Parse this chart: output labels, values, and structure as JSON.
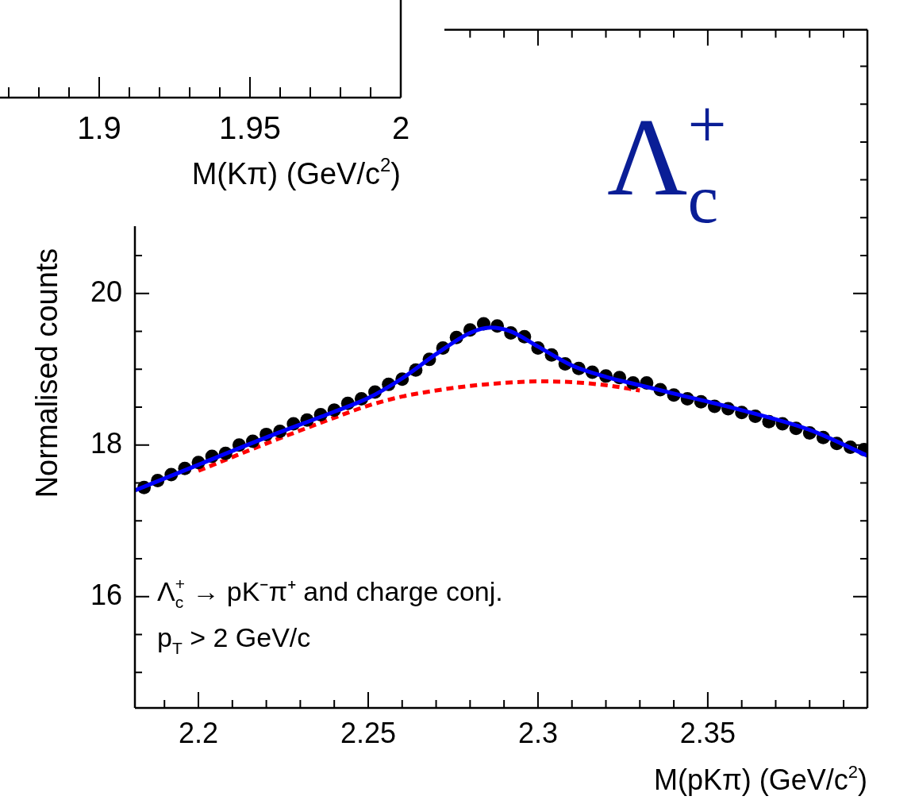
{
  "chart_data": [
    {
      "type": "other",
      "xlabel": "M(Kπ) (GeV/c$^{2}$)",
      "annotations": [
        "1.9",
        "1.95",
        "2"
      ]
    },
    {
      "type": "scatter",
      "title": "Λ$_{c}$$^{+}$",
      "xlabel": "M(pKπ) (GeV/c$^{2}$)",
      "ylabel": "Normalised counts",
      "annotations": [
        "Λ$_{c}$$^{+}$ → pK⁻π⁺ and charge conj.",
        "p$_{T}$ > 2 GeV/c"
      ],
      "xlim": [
        2.1813,
        2.397
      ],
      "xticks": [
        2.2,
        2.25,
        2.3,
        2.35
      ],
      "ylim": [
        14.53,
        23.48
      ],
      "yticks": [
        16,
        18,
        20
      ],
      "series": [
        {
          "type": "line",
          "color": "#0000ff",
          "marker": "none",
          "x": [
            2.1813,
            2.2,
            2.22,
            2.24,
            2.25,
            2.26,
            2.27,
            2.28,
            2.286,
            2.292,
            2.3,
            2.31,
            2.32,
            2.33,
            2.34,
            2.36,
            2.38,
            2.397
          ],
          "values": [
            17.4,
            17.74,
            18.1,
            18.44,
            18.62,
            18.88,
            19.2,
            19.48,
            19.55,
            19.5,
            19.3,
            19.05,
            18.9,
            18.79,
            18.68,
            18.46,
            18.2,
            17.86
          ]
        },
        {
          "color": "#000000",
          "marker": "circle",
          "x": [
            2.184,
            2.188,
            2.192,
            2.196,
            2.2,
            2.204,
            2.208,
            2.212,
            2.216,
            2.22,
            2.224,
            2.228,
            2.232,
            2.236,
            2.24,
            2.244,
            2.248,
            2.252,
            2.256,
            2.26,
            2.264,
            2.268,
            2.272,
            2.276,
            2.28,
            2.284,
            2.288,
            2.292,
            2.296,
            2.3,
            2.304,
            2.308,
            2.312,
            2.316,
            2.32,
            2.324,
            2.328,
            2.332,
            2.336,
            2.34,
            2.344,
            2.348,
            2.352,
            2.356,
            2.36,
            2.364,
            2.368,
            2.372,
            2.376,
            2.38,
            2.384,
            2.388,
            2.392,
            2.396
          ],
          "values": [
            17.44,
            17.53,
            17.61,
            17.69,
            17.77,
            17.85,
            17.89,
            18.0,
            18.05,
            18.14,
            18.18,
            18.28,
            18.33,
            18.4,
            18.46,
            18.55,
            18.61,
            18.7,
            18.8,
            18.87,
            18.99,
            19.13,
            19.28,
            19.42,
            19.52,
            19.6,
            19.57,
            19.48,
            19.43,
            19.28,
            19.19,
            19.07,
            19.01,
            18.96,
            18.91,
            18.89,
            18.82,
            18.82,
            18.73,
            18.66,
            18.61,
            18.57,
            18.51,
            18.48,
            18.43,
            18.38,
            18.31,
            18.28,
            18.22,
            18.16,
            18.1,
            18.02,
            17.97,
            17.94
          ]
        },
        {
          "type": "line",
          "color": "#ff0000",
          "marker": "none",
          "line_style": "dashed",
          "x": [
            2.2,
            2.22,
            2.24,
            2.25,
            2.26,
            2.27,
            2.28,
            2.29,
            2.3,
            2.31,
            2.32,
            2.33
          ],
          "values": [
            17.66,
            18.02,
            18.36,
            18.52,
            18.64,
            18.72,
            18.78,
            18.82,
            18.84,
            18.83,
            18.79,
            18.72
          ]
        }
      ]
    }
  ]
}
